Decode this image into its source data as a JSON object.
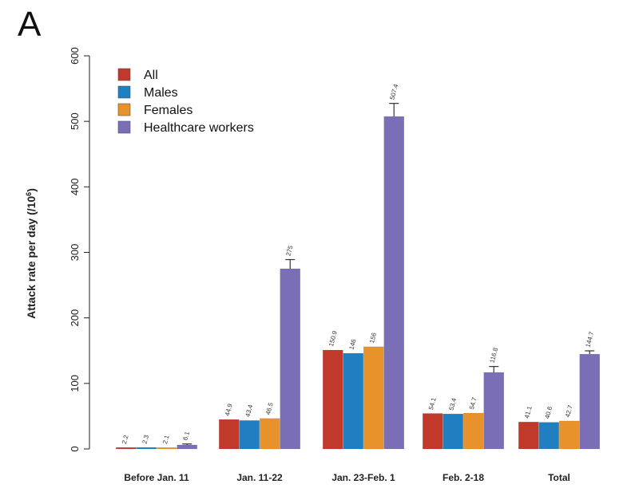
{
  "panel_label": "A",
  "chart_data": {
    "type": "bar",
    "title": "",
    "xlabel": "",
    "ylabel_main": "Attack rate per day (/10",
    "ylabel_sup": "6",
    "ylabel_close": ")",
    "ylim": [
      0,
      600
    ],
    "yticks": [
      0,
      100,
      200,
      300,
      400,
      500,
      600
    ],
    "categories": [
      "Before Jan. 11",
      "Jan. 11-22",
      "Jan. 23-Feb. 1",
      "Feb. 2-18",
      "Total"
    ],
    "legend_position": "top-left",
    "grid": false,
    "series": [
      {
        "name": "All",
        "color": "#c0392b",
        "values": [
          2.2,
          44.9,
          150.9,
          54.1,
          41.1
        ],
        "labels": [
          "2.2",
          "44.9",
          "150.9",
          "54.1",
          "41.1"
        ],
        "errors": [
          0,
          0,
          0,
          0,
          0
        ]
      },
      {
        "name": "Males",
        "color": "#1f7fc0",
        "values": [
          2.3,
          43.4,
          146,
          53.4,
          40.6
        ],
        "labels": [
          "2.3",
          "43.4",
          "146",
          "53.4",
          "40.6"
        ],
        "errors": [
          0,
          0,
          0,
          0,
          0
        ]
      },
      {
        "name": "Females",
        "color": "#e8922b",
        "values": [
          2.1,
          46.5,
          156,
          54.7,
          42.7
        ],
        "labels": [
          "2.1",
          "46.5",
          "156",
          "54.7",
          "42.7"
        ],
        "errors": [
          0,
          0,
          0,
          0,
          0
        ]
      },
      {
        "name": "Healthcare workers",
        "color": "#7a6fb6",
        "values": [
          6.1,
          275,
          507.4,
          116.8,
          144.7
        ],
        "labels": [
          "6.1",
          "275",
          "507.4",
          "116.8",
          "144.7"
        ],
        "errors": [
          1.5,
          14,
          20,
          9,
          5
        ]
      }
    ]
  }
}
